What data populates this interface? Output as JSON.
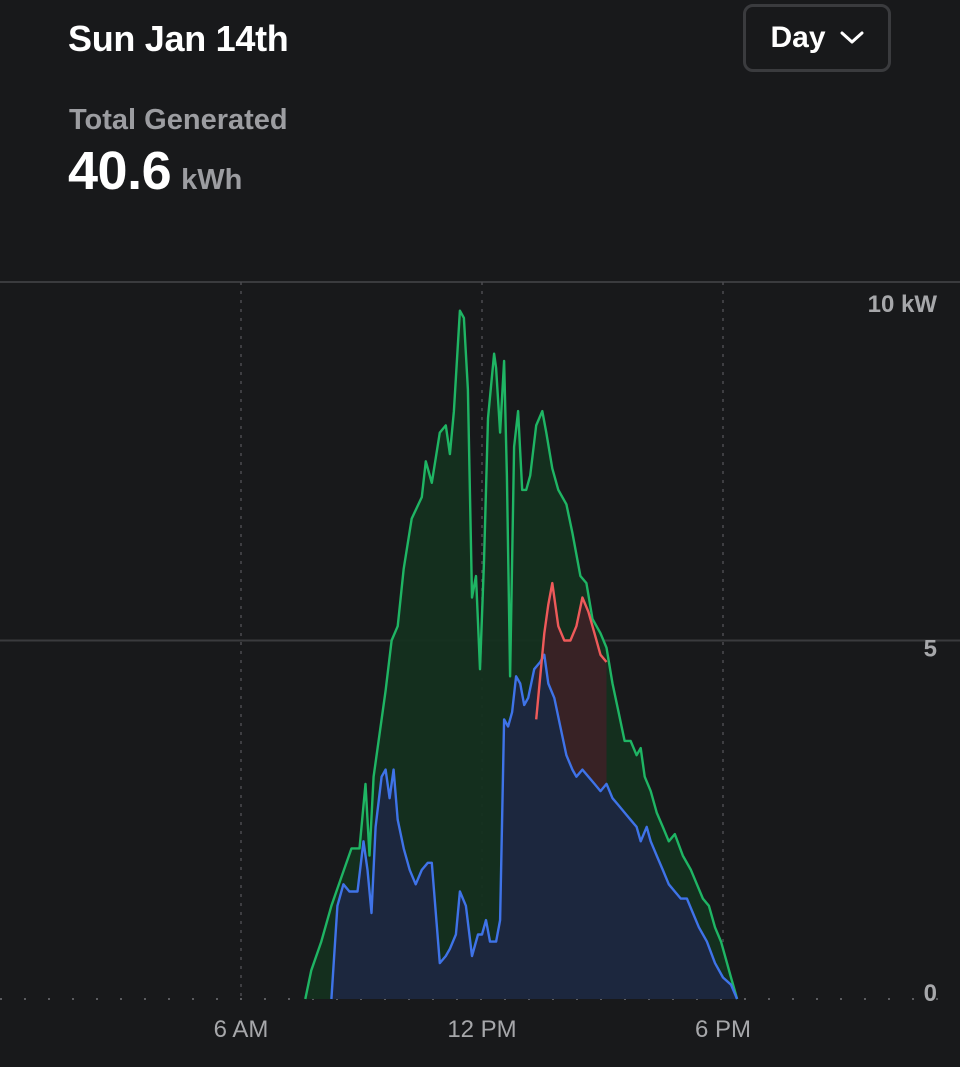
{
  "header": {
    "date_title": "Sun Jan 14th",
    "period_select": {
      "value": "Day",
      "icon": "chevron-down-icon"
    }
  },
  "summary": {
    "label": "Total Generated",
    "value": "40.6",
    "unit": "kWh"
  },
  "chart_data": {
    "type": "area",
    "x_unit": "hour of day",
    "y_unit": "kW",
    "xlim": [
      0,
      24
    ],
    "ylim": [
      0,
      10
    ],
    "y_ticks": [
      {
        "value": 10,
        "label": "10 kW"
      },
      {
        "value": 5,
        "label": "5"
      },
      {
        "value": 0,
        "label": "0"
      }
    ],
    "x_ticks": [
      {
        "value": 6,
        "label": "6 AM"
      },
      {
        "value": 12,
        "label": "12 PM"
      },
      {
        "value": 18,
        "label": "6 PM"
      }
    ],
    "grid": {
      "horizontal": true,
      "vertical": "dashed"
    },
    "colors": {
      "green": "#1fb564",
      "blue": "#3f73e8",
      "red": "#ee5a5a",
      "green_fill": "#14301f",
      "blue_fill": "#1c2740",
      "red_fill": "#3a2226",
      "grid": "#3a3b3e",
      "tick_text": "#a6a7aa"
    },
    "series": [
      {
        "color": "green",
        "points": [
          [
            7.6,
            0
          ],
          [
            7.75,
            0.4
          ],
          [
            8.0,
            0.8
          ],
          [
            8.25,
            1.3
          ],
          [
            8.5,
            1.7
          ],
          [
            8.75,
            2.1
          ],
          [
            8.95,
            2.1
          ],
          [
            9.1,
            3.0
          ],
          [
            9.2,
            2.0
          ],
          [
            9.3,
            3.1
          ],
          [
            9.45,
            3.7
          ],
          [
            9.6,
            4.3
          ],
          [
            9.75,
            5.0
          ],
          [
            9.9,
            5.2
          ],
          [
            10.05,
            6.0
          ],
          [
            10.25,
            6.7
          ],
          [
            10.5,
            7.0
          ],
          [
            10.6,
            7.5
          ],
          [
            10.75,
            7.2
          ],
          [
            10.95,
            7.9
          ],
          [
            11.1,
            8.0
          ],
          [
            11.2,
            7.6
          ],
          [
            11.3,
            8.2
          ],
          [
            11.45,
            9.6
          ],
          [
            11.55,
            9.5
          ],
          [
            11.65,
            8.5
          ],
          [
            11.75,
            5.6
          ],
          [
            11.85,
            5.9
          ],
          [
            11.95,
            4.6
          ],
          [
            12.05,
            6.1
          ],
          [
            12.15,
            8.1
          ],
          [
            12.3,
            9.0
          ],
          [
            12.35,
            8.8
          ],
          [
            12.45,
            7.9
          ],
          [
            12.55,
            8.9
          ],
          [
            12.62,
            7.3
          ],
          [
            12.7,
            4.5
          ],
          [
            12.8,
            7.7
          ],
          [
            12.9,
            8.2
          ],
          [
            13.0,
            7.1
          ],
          [
            13.1,
            7.1
          ],
          [
            13.2,
            7.3
          ],
          [
            13.35,
            8.0
          ],
          [
            13.5,
            8.2
          ],
          [
            13.6,
            7.9
          ],
          [
            13.75,
            7.4
          ],
          [
            13.9,
            7.1
          ],
          [
            14.1,
            6.9
          ],
          [
            14.25,
            6.5
          ],
          [
            14.45,
            5.9
          ],
          [
            14.6,
            5.8
          ],
          [
            14.75,
            5.3
          ],
          [
            14.95,
            5.1
          ],
          [
            15.1,
            4.9
          ],
          [
            15.25,
            4.4
          ],
          [
            15.4,
            4.0
          ],
          [
            15.55,
            3.6
          ],
          [
            15.7,
            3.6
          ],
          [
            15.85,
            3.4
          ],
          [
            15.95,
            3.5
          ],
          [
            16.05,
            3.1
          ],
          [
            16.2,
            2.9
          ],
          [
            16.35,
            2.6
          ],
          [
            16.5,
            2.4
          ],
          [
            16.65,
            2.2
          ],
          [
            16.8,
            2.3
          ],
          [
            17.0,
            2.0
          ],
          [
            17.2,
            1.8
          ],
          [
            17.35,
            1.6
          ],
          [
            17.5,
            1.4
          ],
          [
            17.65,
            1.3
          ],
          [
            17.8,
            1.0
          ],
          [
            17.95,
            0.8
          ],
          [
            18.1,
            0.5
          ],
          [
            18.2,
            0.3
          ],
          [
            18.3,
            0.1
          ],
          [
            18.35,
            0
          ]
        ]
      },
      {
        "color": "blue",
        "points": [
          [
            8.25,
            0
          ],
          [
            8.4,
            1.3
          ],
          [
            8.55,
            1.6
          ],
          [
            8.7,
            1.5
          ],
          [
            8.9,
            1.5
          ],
          [
            9.05,
            2.2
          ],
          [
            9.15,
            1.8
          ],
          [
            9.25,
            1.2
          ],
          [
            9.35,
            2.4
          ],
          [
            9.5,
            3.1
          ],
          [
            9.6,
            3.2
          ],
          [
            9.7,
            2.8
          ],
          [
            9.8,
            3.2
          ],
          [
            9.9,
            2.5
          ],
          [
            10.05,
            2.1
          ],
          [
            10.2,
            1.8
          ],
          [
            10.35,
            1.6
          ],
          [
            10.5,
            1.8
          ],
          [
            10.65,
            1.9
          ],
          [
            10.75,
            1.9
          ],
          [
            10.95,
            0.5
          ],
          [
            11.1,
            0.6
          ],
          [
            11.2,
            0.7
          ],
          [
            11.35,
            0.9
          ],
          [
            11.45,
            1.5
          ],
          [
            11.6,
            1.3
          ],
          [
            11.75,
            0.6
          ],
          [
            11.9,
            0.9
          ],
          [
            12.0,
            0.9
          ],
          [
            12.1,
            1.1
          ],
          [
            12.2,
            0.8
          ],
          [
            12.35,
            0.8
          ],
          [
            12.45,
            1.1
          ],
          [
            12.55,
            3.9
          ],
          [
            12.65,
            3.8
          ],
          [
            12.75,
            4.0
          ],
          [
            12.85,
            4.5
          ],
          [
            12.95,
            4.4
          ],
          [
            13.05,
            4.1
          ],
          [
            13.15,
            4.2
          ],
          [
            13.3,
            4.6
          ],
          [
            13.45,
            4.7
          ],
          [
            13.55,
            4.8
          ],
          [
            13.65,
            4.4
          ],
          [
            13.8,
            4.2
          ],
          [
            13.95,
            3.8
          ],
          [
            14.1,
            3.4
          ],
          [
            14.25,
            3.2
          ],
          [
            14.35,
            3.1
          ],
          [
            14.5,
            3.2
          ],
          [
            14.65,
            3.1
          ],
          [
            14.8,
            3.0
          ],
          [
            14.95,
            2.9
          ],
          [
            15.1,
            3.0
          ],
          [
            15.25,
            2.8
          ],
          [
            15.4,
            2.7
          ],
          [
            15.55,
            2.6
          ],
          [
            15.7,
            2.5
          ],
          [
            15.85,
            2.4
          ],
          [
            15.95,
            2.2
          ],
          [
            16.1,
            2.4
          ],
          [
            16.2,
            2.2
          ],
          [
            16.35,
            2.0
          ],
          [
            16.5,
            1.8
          ],
          [
            16.65,
            1.6
          ],
          [
            16.8,
            1.5
          ],
          [
            16.95,
            1.4
          ],
          [
            17.1,
            1.4
          ],
          [
            17.25,
            1.2
          ],
          [
            17.4,
            1.0
          ],
          [
            17.6,
            0.8
          ],
          [
            17.8,
            0.5
          ],
          [
            18.0,
            0.3
          ],
          [
            18.2,
            0.2
          ],
          [
            18.35,
            0
          ]
        ]
      },
      {
        "color": "red",
        "points": [
          [
            13.35,
            3.9
          ],
          [
            13.55,
            5.1
          ],
          [
            13.65,
            5.5
          ],
          [
            13.75,
            5.8
          ],
          [
            13.9,
            5.2
          ],
          [
            14.05,
            5.0
          ],
          [
            14.2,
            5.0
          ],
          [
            14.35,
            5.2
          ],
          [
            14.5,
            5.6
          ],
          [
            14.65,
            5.4
          ],
          [
            14.8,
            5.1
          ],
          [
            14.95,
            4.8
          ],
          [
            15.1,
            4.7
          ]
        ]
      }
    ]
  }
}
